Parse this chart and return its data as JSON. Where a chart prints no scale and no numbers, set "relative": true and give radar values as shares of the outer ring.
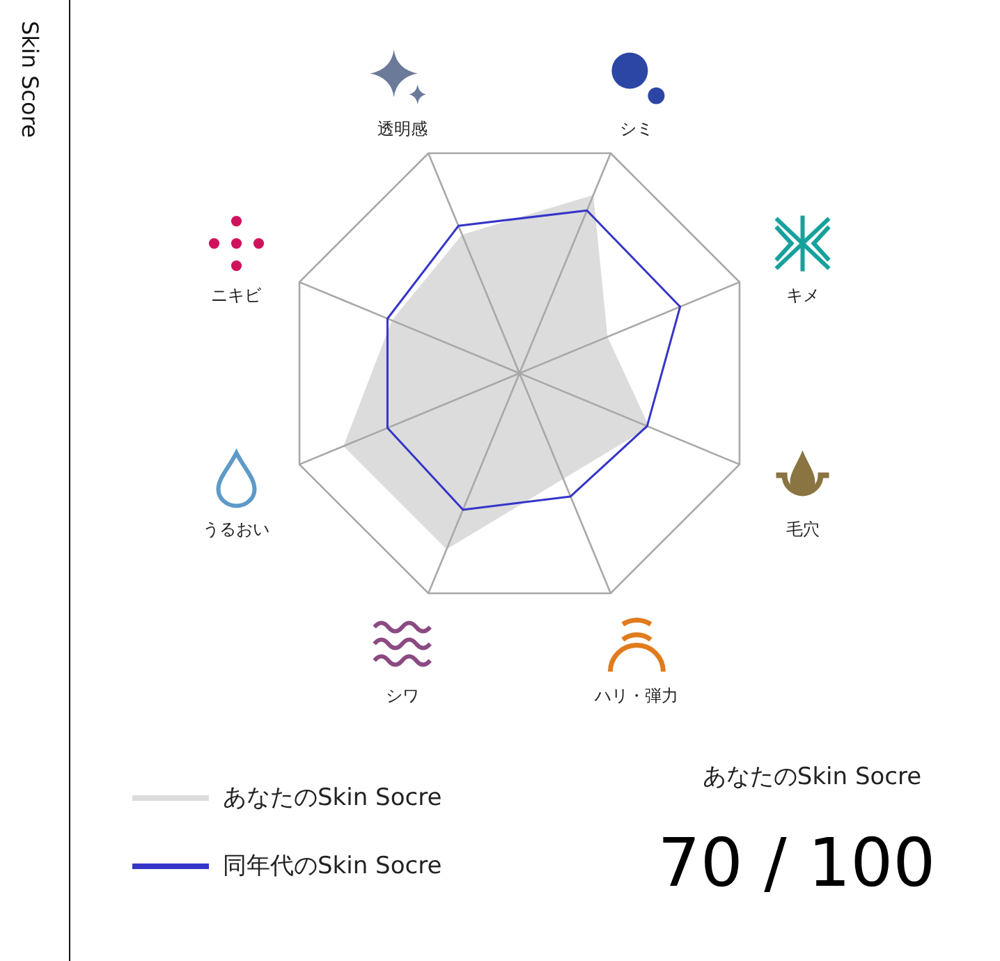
{
  "chart_data": {
    "type": "radar",
    "title": "Skin Score",
    "categories": [
      "シミ",
      "キメ",
      "毛穴",
      "ハリ・弾力",
      "シワ",
      "うるおい",
      "ニキビ",
      "透明感"
    ],
    "relative": true,
    "grid": true,
    "series": [
      {
        "name": "あなたのSkin Socre",
        "type": "area",
        "color": "#dcdcdc",
        "values": [
          0.81,
          0.4,
          0.59,
          0.48,
          0.8,
          0.8,
          0.58,
          0.63
        ]
      },
      {
        "name": "同年代のSkin Socre",
        "color": "#3535c8",
        "values": [
          0.74,
          0.73,
          0.58,
          0.56,
          0.62,
          0.6,
          0.6,
          0.67
        ]
      }
    ],
    "legend": "bottom left",
    "annotations": [
      "あなたのSkin Socre",
      "70 / 100"
    ]
  }
}
